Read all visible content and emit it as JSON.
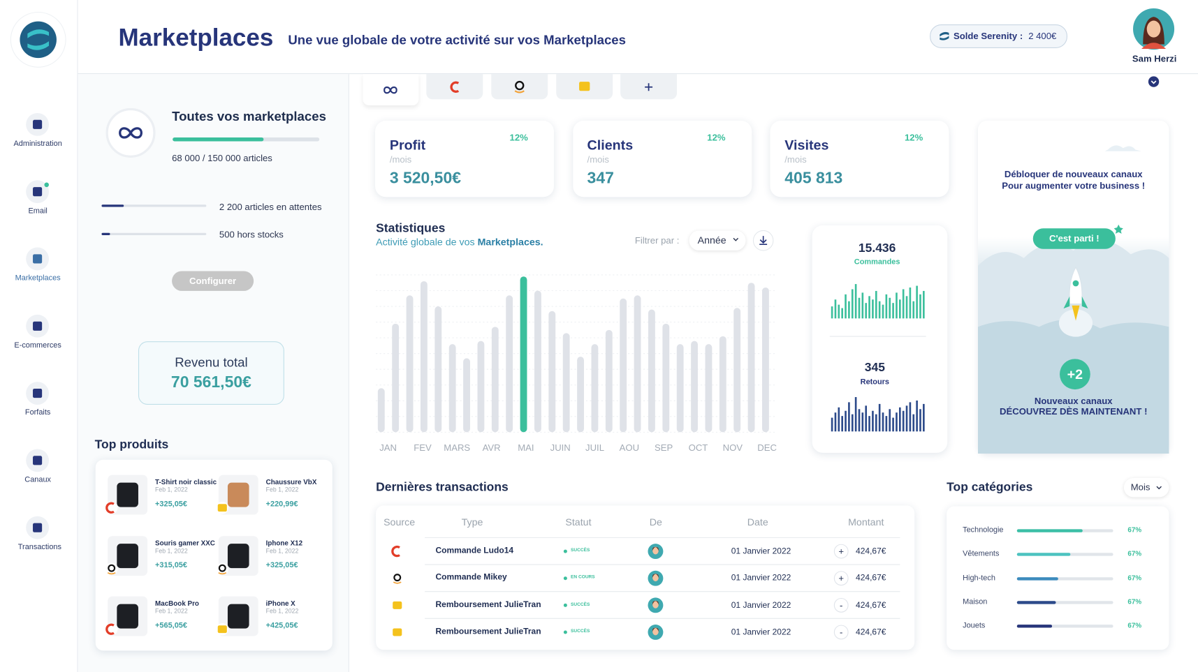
{
  "sidebar": {
    "nav": [
      "Administration",
      "Email",
      "Marketplaces",
      "E-commerces",
      "Forfaits",
      "Canaux",
      "Transactions"
    ]
  },
  "header": {
    "title": "Marketplaces",
    "subtitle": "Une vue globale de votre activité sur vos Marketplaces",
    "balance_label": "Solde Serenity :",
    "balance": "2 400€",
    "user": "Sam Herzi"
  },
  "overview": {
    "title": "Toutes vos marketplaces",
    "articles": "68 000 / 150 000 articles",
    "pending": "2 200 articles en attentes",
    "out_of_stock": "500 hors stocks",
    "button": "Configurer",
    "revenue_label": "Revenu total",
    "revenue": "70 561,50€"
  },
  "top_products": {
    "title": "Top produits",
    "items": [
      {
        "name": "T-Shirt noir classic",
        "date": "Feb 1, 2022",
        "amount": "+325,05€"
      },
      {
        "name": "Chaussure VbX",
        "date": "Feb 1, 2022",
        "amount": "+220,99€"
      },
      {
        "name": "Souris gamer XXC",
        "date": "Feb 1, 2022",
        "amount": "+315,05€"
      },
      {
        "name": "Iphone X12",
        "date": "Feb 1, 2022",
        "amount": "+325,05€"
      },
      {
        "name": "MacBook Pro",
        "date": "Feb 1, 2022",
        "amount": "+565,05€"
      },
      {
        "name": "iPhone X",
        "date": "Feb 1, 2022",
        "amount": "+425,05€"
      }
    ]
  },
  "kpis": [
    {
      "title": "Profit",
      "unit": "/mois",
      "value": "3 520,50€",
      "change": "12%"
    },
    {
      "title": "Clients",
      "unit": "/mois",
      "value": "347",
      "change": "12%"
    },
    {
      "title": "Visites",
      "unit": "/mois",
      "value": "405 813",
      "change": "12%"
    }
  ],
  "chart_data": [
    {
      "type": "bar",
      "title": "Statistiques",
      "subtitle": "Activité globale de vos",
      "subtitle_highlight": "Marketplaces.",
      "filter_label": "Filtrer par :",
      "filter": "Année",
      "x_labels": [
        "JAN",
        "FEV",
        "MARS",
        "AVR",
        "MAI",
        "JUIN",
        "JUIL",
        "AOU",
        "SEP",
        "OCT",
        "NOV",
        "DEC"
      ],
      "values": [
        28,
        69,
        87,
        96,
        80,
        56,
        47,
        58,
        67,
        87,
        99,
        90,
        77,
        63,
        48,
        56,
        65,
        85,
        87,
        78,
        69,
        56,
        58,
        56,
        61,
        79,
        95,
        92
      ],
      "colors": [
        "#dfe2e8",
        "#dfe2e8",
        "#dfe2e8",
        "#dfe2e8",
        "#dfe2e8",
        "#dfe2e8",
        "#dfe2e8",
        "#dfe2e8",
        "#dfe2e8",
        "#dfe2e8",
        "#3bbf9c",
        "#dfe2e8",
        "#dfe2e8",
        "#dfe2e8",
        "#dfe2e8",
        "#dfe2e8",
        "#dfe2e8",
        "#dfe2e8",
        "#dfe2e8",
        "#dfe2e8",
        "#dfe2e8",
        "#dfe2e8",
        "#dfe2e8",
        "#dfe2e8",
        "#dfe2e8",
        "#dfe2e8",
        "#dfe2e8",
        "#dfe2e8"
      ],
      "ylim": [
        0,
        100
      ]
    },
    {
      "type": "bar",
      "title": "15.436",
      "subtitle": "Commandes",
      "color": "#3bbf9c",
      "ylim": [
        0,
        100
      ],
      "values": [
        35,
        55,
        40,
        30,
        70,
        50,
        85,
        100,
        60,
        75,
        45,
        65,
        55,
        80,
        50,
        40,
        70,
        60,
        45,
        75,
        55,
        85,
        65,
        90,
        50,
        95,
        70,
        80
      ]
    },
    {
      "type": "bar",
      "title": "345",
      "subtitle": "Retours",
      "color": "#2c4a8a",
      "ylim": [
        0,
        100
      ],
      "values": [
        40,
        55,
        70,
        45,
        60,
        85,
        50,
        100,
        65,
        55,
        75,
        45,
        60,
        50,
        80,
        55,
        45,
        65,
        40,
        55,
        70,
        60,
        75,
        85,
        50,
        90,
        65,
        80
      ]
    }
  ],
  "promo": {
    "line1": "Débloquer de nouveaux canaux",
    "line2": "Pour augmenter votre business !",
    "button": "C'est parti !",
    "badge": "+2",
    "line3": "Nouveaux canaux",
    "line4": "DÉCOUVREZ DÈS MAINTENANT !"
  },
  "transactions": {
    "title": "Dernières transactions",
    "columns": [
      "Source",
      "Type",
      "Statut",
      "De",
      "Date",
      "Montant"
    ],
    "rows": [
      {
        "type": "Commande Ludo14",
        "status": "SUCCÈS",
        "date": "01 Janvier 2022",
        "sign": "+",
        "amount": "424,67€"
      },
      {
        "type": "Commande Mikey",
        "status": "EN COURS",
        "date": "01 Janvier 2022",
        "sign": "+",
        "amount": "424,67€"
      },
      {
        "type": "Remboursement JulieTran",
        "status": "SUCCÈS",
        "date": "01 Janvier 2022",
        "sign": "-",
        "amount": "424,67€"
      },
      {
        "type": "Remboursement JulieTran",
        "status": "SUCCÈS",
        "date": "01 Janvier 2022",
        "sign": "-",
        "amount": "424,67€"
      }
    ]
  },
  "categories": {
    "title": "Top catégories",
    "filter": "Mois",
    "items": [
      {
        "name": "Technologie",
        "value": "67%"
      },
      {
        "name": "Vêtements",
        "value": "67%"
      },
      {
        "name": "High-tech",
        "value": "67%"
      },
      {
        "name": "Maison",
        "value": "67%"
      },
      {
        "name": "Jouets",
        "value": "67%"
      }
    ]
  }
}
